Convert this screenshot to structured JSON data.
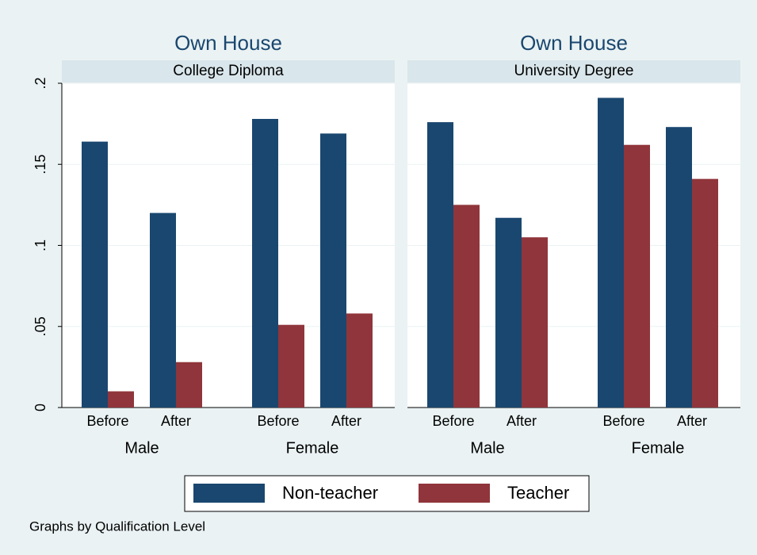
{
  "chart_data": [
    {
      "type": "bar",
      "title": "Own House",
      "subtitle": "College Diploma",
      "categories": [
        "Before",
        "After",
        "Before",
        "After"
      ],
      "groups": [
        "Male",
        "Female"
      ],
      "series": [
        {
          "name": "Non-teacher",
          "color": "#1a476f",
          "values": [
            0.164,
            0.12,
            0.178,
            0.169
          ]
        },
        {
          "name": "Teacher",
          "color": "#90353b",
          "values": [
            0.01,
            0.028,
            0.051,
            0.058
          ]
        }
      ],
      "ylim": [
        0,
        0.2
      ],
      "yticks": [
        0,
        {
          "value": 0.05,
          "label": ".05"
        },
        {
          "value": 0.1,
          "label": ".1"
        },
        {
          "value": 0.15,
          "label": ".15"
        },
        {
          "value": 0.2,
          "label": ".2"
        }
      ],
      "grid": true
    },
    {
      "type": "bar",
      "title": "Own House",
      "subtitle": "University Degree",
      "categories": [
        "Before",
        "After",
        "Before",
        "After"
      ],
      "groups": [
        "Male",
        "Female"
      ],
      "series": [
        {
          "name": "Non-teacher",
          "color": "#1a476f",
          "values": [
            0.176,
            0.117,
            0.191,
            0.173
          ]
        },
        {
          "name": "Teacher",
          "color": "#90353b",
          "values": [
            0.125,
            0.105,
            0.162,
            0.141
          ]
        }
      ],
      "ylim": [
        0,
        0.2
      ],
      "yticks": [
        0,
        0.05,
        0.1,
        0.15,
        0.2
      ],
      "grid": true
    }
  ],
  "note": "Graphs by Qualification Level"
}
